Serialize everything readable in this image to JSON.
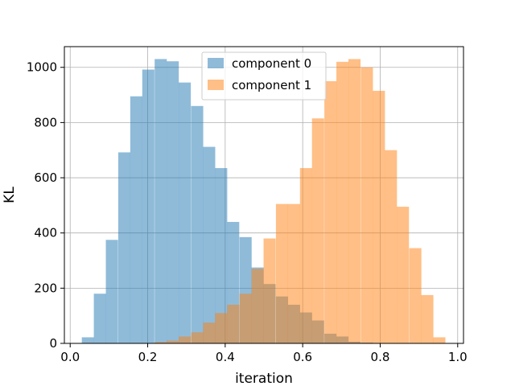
{
  "chart_data": {
    "type": "bar",
    "subtype": "overlapping-histogram",
    "title": "",
    "xlabel": "iteration",
    "ylabel": "KL",
    "xlim": [
      -0.015,
      1.015
    ],
    "ylim": [
      0,
      1075
    ],
    "xticks": [
      "0.0",
      "0.2",
      "0.4",
      "0.6",
      "0.8",
      "1.0"
    ],
    "xtick_values": [
      0.0,
      0.2,
      0.4,
      0.6,
      0.8,
      1.0
    ],
    "yticks": [
      "0",
      "200",
      "400",
      "600",
      "800",
      "1000"
    ],
    "ytick_values": [
      0,
      200,
      400,
      600,
      800,
      1000
    ],
    "grid": true,
    "legend_position": "upper-center",
    "bin_width": 0.0313,
    "series": [
      {
        "name": "component 0",
        "color": "#1f77b4",
        "alpha": 0.5,
        "bin_starts": [
          0.03,
          0.061,
          0.092,
          0.124,
          0.155,
          0.186,
          0.218,
          0.249,
          0.28,
          0.312,
          0.343,
          0.374,
          0.405,
          0.437,
          0.468,
          0.499,
          0.531,
          0.562,
          0.593,
          0.624,
          0.656,
          0.687,
          0.718,
          0.75
        ],
        "values": [
          22,
          180,
          375,
          692,
          895,
          992,
          1030,
          1022,
          945,
          860,
          712,
          635,
          440,
          385,
          275,
          215,
          170,
          140,
          112,
          83,
          35,
          25,
          6,
          3
        ]
      },
      {
        "name": "component 1",
        "color": "#ff7f0e",
        "alpha": 0.5,
        "bin_starts": [
          0.218,
          0.249,
          0.28,
          0.312,
          0.343,
          0.374,
          0.405,
          0.437,
          0.468,
          0.499,
          0.531,
          0.562,
          0.593,
          0.624,
          0.656,
          0.687,
          0.718,
          0.75,
          0.781,
          0.812,
          0.843,
          0.875,
          0.906,
          0.937
        ],
        "values": [
          5,
          10,
          25,
          40,
          75,
          110,
          140,
          180,
          270,
          380,
          505,
          505,
          635,
          815,
          950,
          1020,
          1030,
          1000,
          915,
          700,
          495,
          345,
          175,
          22
        ]
      }
    ]
  }
}
